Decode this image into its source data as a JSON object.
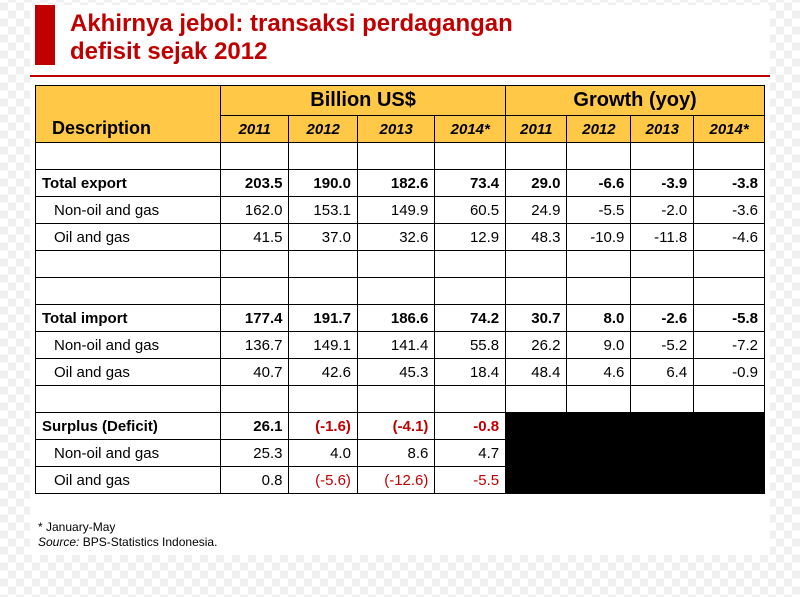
{
  "title_line1": "Akhirnya jebol: transaksi perdagangan",
  "title_line2": "defisit sejak 2012",
  "table": {
    "desc_header": "Description",
    "group1": "Billion US$",
    "group2": "Growth (yoy)",
    "years": [
      "2011",
      "2012",
      "2013",
      "2014*",
      "2011",
      "2012",
      "2013",
      "2014*"
    ],
    "rows": [
      {
        "label": "Total export",
        "vals": [
          "203.5",
          "190.0",
          "182.6",
          "73.4",
          "29.0",
          "-6.6",
          "-3.9",
          "-3.8"
        ],
        "bold": true,
        "neg": [
          false,
          false,
          false,
          false,
          false,
          false,
          false,
          false
        ]
      },
      {
        "label": "Non-oil and gas",
        "vals": [
          "162.0",
          "153.1",
          "149.9",
          "60.5",
          "24.9",
          "-5.5",
          "-2.0",
          "-3.6"
        ],
        "bold": false,
        "neg": [
          false,
          false,
          false,
          false,
          false,
          false,
          false,
          false
        ]
      },
      {
        "label": "Oil and gas",
        "vals": [
          "41.5",
          "37.0",
          "32.6",
          "12.9",
          "48.3",
          "-10.9",
          "-11.8",
          "-4.6"
        ],
        "bold": false,
        "neg": [
          false,
          false,
          false,
          false,
          false,
          false,
          false,
          false
        ]
      },
      {
        "label": "Total import",
        "vals": [
          "177.4",
          "191.7",
          "186.6",
          "74.2",
          "30.7",
          "8.0",
          "-2.6",
          "-5.8"
        ],
        "bold": true,
        "neg": [
          false,
          false,
          false,
          false,
          false,
          false,
          false,
          false
        ]
      },
      {
        "label": "Non-oil and gas",
        "vals": [
          "136.7",
          "149.1",
          "141.4",
          "55.8",
          "26.2",
          "9.0",
          "-5.2",
          "-7.2"
        ],
        "bold": false,
        "neg": [
          false,
          false,
          false,
          false,
          false,
          false,
          false,
          false
        ]
      },
      {
        "label": "Oil and gas",
        "vals": [
          "40.7",
          "42.6",
          "45.3",
          "18.4",
          "48.4",
          "4.6",
          "6.4",
          "-0.9"
        ],
        "bold": false,
        "neg": [
          false,
          false,
          false,
          false,
          false,
          false,
          false,
          false
        ]
      }
    ],
    "surplus_rows": [
      {
        "label": "Surplus (Deficit)",
        "vals": [
          "26.1",
          "(-1.6)",
          "(-4.1)",
          "-0.8"
        ],
        "bold": true,
        "neg": [
          false,
          true,
          true,
          true
        ]
      },
      {
        "label": "Non-oil and gas",
        "vals": [
          "25.3",
          "4.0",
          "8.6",
          "4.7"
        ],
        "bold": false,
        "neg": [
          false,
          false,
          false,
          false
        ]
      },
      {
        "label": "Oil and gas",
        "vals": [
          "0.8",
          "(-5.6)",
          "(-12.6)",
          "-5.5"
        ],
        "bold": false,
        "neg": [
          false,
          true,
          true,
          true
        ]
      }
    ]
  },
  "footnote_line1": "* January-May",
  "footnote_line2_label": "Source:",
  "footnote_line2_text": " BPS-Statistics Indonesia.",
  "colors": {
    "accent_red": "#c00000",
    "header_bg": "#ffc847",
    "black": "#000000",
    "white": "#ffffff"
  }
}
